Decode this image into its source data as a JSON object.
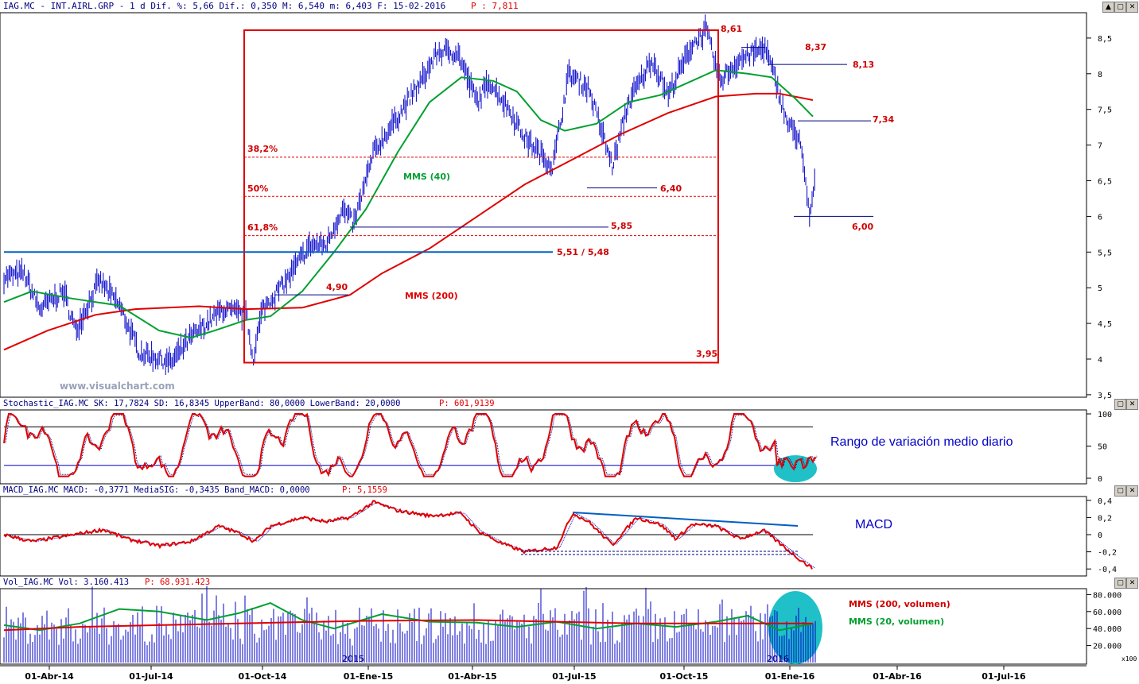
{
  "header": {
    "title": "IAG.MC - INT.AIRL.GRP - 1 d Dif. %: 5,66 Dif.: 0,350 M: 6,540 m: 6,403 F: 15-02-2016",
    "p_label": "P : 7,811"
  },
  "watermark": "www.visualchart.com",
  "date_labels": [
    "01-Abr-14",
    "01-Jul-14",
    "01-Oct-14",
    "01-Ene-15",
    "01-Abr-15",
    "01-Jul-15",
    "01-Oct-15",
    "01-Ene-16",
    "01-Abr-16",
    "01-Jul-16"
  ],
  "year_labels": [
    "2015",
    "2016"
  ],
  "price_panel": {
    "y_ticks": [
      "8,5",
      "8",
      "7,5",
      "7",
      "6,5",
      "6",
      "5,5",
      "5",
      "4,5",
      "4",
      "3,5"
    ],
    "levels": {
      "high": "8,61",
      "low": "3,95",
      "l837": "8,37",
      "l813": "8,13",
      "l734": "7,34",
      "l640": "6,40",
      "l600": "6,00",
      "l585": "5,85",
      "l551": "5,51 / 5,48",
      "l490": "4,90"
    },
    "fib": [
      "38,2%",
      "50%",
      "61,8%"
    ],
    "mms40_label": "MMS (40)",
    "mms200_label": "MMS (200)"
  },
  "stoch_panel": {
    "title": "Stochastic_IAG.MC SK: 17,7824 SD: 16,8345 UpperBand: 80,0000 LowerBand: 20,0000",
    "p_label": "P: 601,9139",
    "y_ticks": [
      "100",
      "50",
      "0"
    ],
    "note": "Rango de variación medio diario"
  },
  "macd_panel": {
    "title": "MACD_IAG.MC MACD: -0,3771 MediaSIG: -0,3435 Band_MACD: 0,0000",
    "p_label": "P: 5,1559",
    "y_ticks": [
      "0,4",
      "0,2",
      "0",
      "-0,2",
      "-0,4"
    ],
    "note": "MACD"
  },
  "vol_panel": {
    "title": "Vol_IAG.MC Vol: 3.160.413",
    "p_label": "P: 68.931.423",
    "y_ticks": [
      "80.000",
      "60.000",
      "40.000",
      "20.000"
    ],
    "unit": "x100",
    "mms200_label": "MMS (200, volumen)",
    "mms20_label": "MMS (20, volumen)"
  },
  "colors": {
    "price": "#0000c8",
    "mms40": "#00a030",
    "mms200": "#e00000",
    "annot_red": "#d00000",
    "ellipse": "#20c0c8",
    "trend_blue": "#0060c0"
  },
  "chart_data": {
    "type": "line",
    "title": "IAG.MC - INT.AIRL.GRP",
    "x": [
      "01-Abr-14",
      "01-Jul-14",
      "01-Oct-14",
      "01-Ene-15",
      "01-Abr-15",
      "01-Jul-15",
      "01-Oct-15",
      "01-Ene-16",
      "15-02-2016"
    ],
    "series": [
      {
        "name": "IAG.MC",
        "values": [
          5.0,
          4.0,
          4.4,
          6.9,
          8.0,
          6.9,
          7.9,
          7.9,
          6.5
        ]
      },
      {
        "name": "MMS (40)",
        "values": [
          4.8,
          4.3,
          4.5,
          6.5,
          7.8,
          7.4,
          7.9,
          8.0,
          7.4
        ]
      },
      {
        "name": "MMS (200)",
        "values": [
          4.2,
          4.65,
          4.7,
          4.9,
          6.2,
          6.9,
          7.5,
          7.75,
          7.65
        ]
      }
    ],
    "ylim": [
      3.5,
      8.7
    ],
    "annotations": [
      "8,61",
      "8,37",
      "8,13",
      "7,34",
      "6,40",
      "6,00",
      "5,85",
      "5,51 / 5,48",
      "4,90",
      "3,95",
      "38,2%",
      "50%",
      "61,8%"
    ]
  }
}
